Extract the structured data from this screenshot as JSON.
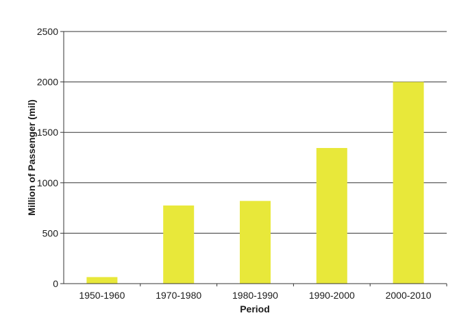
{
  "chart_data": {
    "type": "bar",
    "title": "",
    "xlabel": "Period",
    "ylabel": "Million of Passenger (mil)",
    "categories": [
      "1950-1960",
      "1970-1980",
      "1980-1990",
      "1990-2000",
      "2000-2010"
    ],
    "values": [
      65,
      775,
      820,
      1345,
      2000
    ],
    "ylim": [
      0,
      2500
    ],
    "yticks": [
      "0",
      "500",
      "1000",
      "1500",
      "2000",
      "2500"
    ],
    "grid": true,
    "legend": "none",
    "bar_color": "#e8e83a"
  }
}
